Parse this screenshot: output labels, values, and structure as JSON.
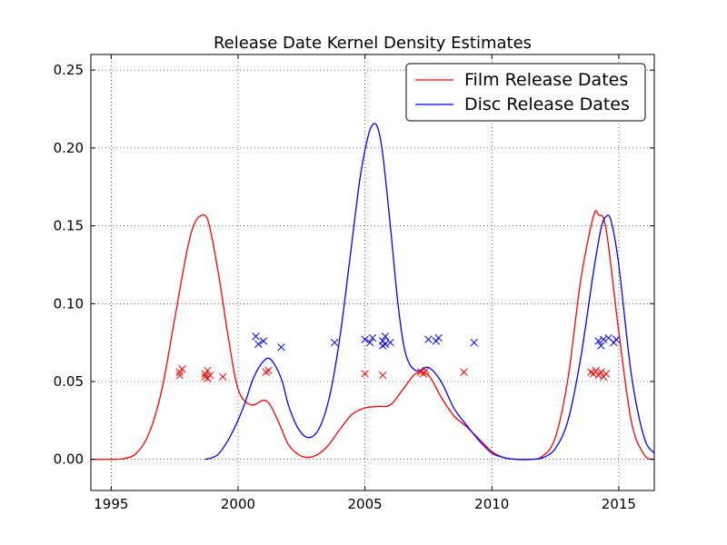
{
  "chart_data": {
    "type": "line",
    "title": "Release Date Kernel Density Estimates",
    "xlabel": "",
    "ylabel": "",
    "xlim": [
      1994.2,
      2016.4
    ],
    "ylim": [
      -0.02,
      0.26
    ],
    "x_ticks": [
      1995,
      2000,
      2005,
      2010,
      2015
    ],
    "x_tick_labels": [
      "1995",
      "2000",
      "2005",
      "2010",
      "2015"
    ],
    "y_ticks": [
      0.0,
      0.05,
      0.1,
      0.15,
      0.2,
      0.25
    ],
    "y_tick_labels": [
      "0.00",
      "0.05",
      "0.10",
      "0.15",
      "0.20",
      "0.25"
    ],
    "grid": true,
    "legend_position": "top-right",
    "series": [
      {
        "name": "Film Release Dates",
        "color": "#ff0000",
        "x": [
          1994.2,
          1995.0,
          1995.5,
          1996.0,
          1996.5,
          1997.0,
          1997.5,
          1998.0,
          1998.3,
          1998.6,
          1998.8,
          1999.0,
          1999.3,
          1999.6,
          2000.0,
          2000.5,
          2001.0,
          2001.3,
          2001.7,
          2002.0,
          2002.5,
          2003.0,
          2003.5,
          2004.0,
          2004.5,
          2005.0,
          2005.5,
          2006.0,
          2006.5,
          2007.0,
          2007.5,
          2008.0,
          2008.5,
          2009.0,
          2009.5,
          2010.0,
          2010.5,
          2011.0,
          2011.5,
          2012.0,
          2012.5,
          2013.0,
          2013.5,
          2014.0,
          2014.2,
          2014.5,
          2015.0,
          2015.5,
          2016.0,
          2016.4
        ],
        "values": [
          0.0,
          0.0,
          0.0005,
          0.004,
          0.017,
          0.045,
          0.09,
          0.135,
          0.152,
          0.157,
          0.154,
          0.14,
          0.112,
          0.08,
          0.045,
          0.035,
          0.038,
          0.034,
          0.02,
          0.009,
          0.002,
          0.002,
          0.008,
          0.019,
          0.029,
          0.033,
          0.034,
          0.035,
          0.045,
          0.055,
          0.054,
          0.04,
          0.028,
          0.021,
          0.013,
          0.005,
          0.001,
          0.0,
          0.0,
          0.002,
          0.014,
          0.052,
          0.115,
          0.156,
          0.157,
          0.148,
          0.082,
          0.024,
          0.003,
          0.0
        ]
      },
      {
        "name": "Disc Release Dates",
        "color": "#0000ff",
        "x": [
          1998.7,
          1999.2,
          1999.7,
          2000.2,
          2000.6,
          2001.0,
          2001.3,
          2001.7,
          2002.0,
          2002.4,
          2002.8,
          2003.2,
          2003.6,
          2004.0,
          2004.4,
          2004.8,
          2005.1,
          2005.3,
          2005.5,
          2005.7,
          2006.0,
          2006.3,
          2006.6,
          2007.0,
          2007.5,
          2008.0,
          2008.5,
          2009.0,
          2009.5,
          2010.0,
          2010.5,
          2011.0,
          2011.5,
          2012.0,
          2012.5,
          2013.0,
          2013.5,
          2014.0,
          2014.3,
          2014.5,
          2014.7,
          2015.0,
          2015.5,
          2016.0,
          2016.4
        ],
        "values": [
          0.0,
          0.003,
          0.015,
          0.033,
          0.052,
          0.063,
          0.064,
          0.052,
          0.034,
          0.019,
          0.014,
          0.02,
          0.04,
          0.077,
          0.128,
          0.18,
          0.206,
          0.215,
          0.213,
          0.196,
          0.15,
          0.1,
          0.068,
          0.057,
          0.059,
          0.05,
          0.033,
          0.022,
          0.012,
          0.004,
          0.001,
          0.0,
          0.0,
          0.001,
          0.007,
          0.025,
          0.065,
          0.12,
          0.148,
          0.156,
          0.153,
          0.125,
          0.054,
          0.014,
          0.004
        ]
      }
    ],
    "marker_series": [
      {
        "name": "Film Release Dates",
        "marker": "x",
        "color": "#ff0000",
        "x": [
          1997.7,
          1997.7,
          1997.8,
          1998.7,
          1998.7,
          1998.8,
          1998.8,
          1998.9,
          1999.4,
          2001.1,
          2001.2,
          2005.0,
          2005.7,
          2007.2,
          2007.3,
          2007.4,
          2008.9,
          2013.9,
          2014.0,
          2014.1,
          2014.2,
          2014.3,
          2014.4,
          2014.5
        ],
        "values": [
          0.054,
          0.056,
          0.058,
          0.053,
          0.055,
          0.057,
          0.052,
          0.054,
          0.053,
          0.056,
          0.057,
          0.055,
          0.054,
          0.056,
          0.055,
          0.057,
          0.056,
          0.056,
          0.055,
          0.057,
          0.054,
          0.056,
          0.053,
          0.055
        ]
      },
      {
        "name": "Disc Release Dates",
        "marker": "x",
        "color": "#0000ff",
        "x": [
          2000.7,
          2000.8,
          2001.0,
          2001.7,
          2003.8,
          2005.0,
          2005.2,
          2005.3,
          2005.7,
          2005.7,
          2005.8,
          2005.8,
          2006.0,
          2007.5,
          2007.8,
          2007.9,
          2009.3,
          2014.2,
          2014.3,
          2014.4,
          2014.6,
          2014.8,
          2014.9
        ],
        "values": [
          0.079,
          0.074,
          0.076,
          0.072,
          0.075,
          0.077,
          0.075,
          0.078,
          0.073,
          0.076,
          0.079,
          0.074,
          0.075,
          0.077,
          0.076,
          0.078,
          0.075,
          0.076,
          0.073,
          0.077,
          0.078,
          0.075,
          0.077
        ]
      }
    ]
  }
}
